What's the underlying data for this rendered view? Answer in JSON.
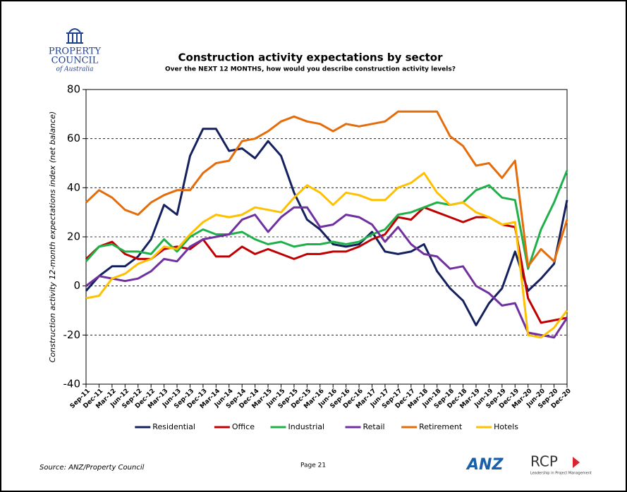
{
  "logo": {
    "name_line1": "PROPERTY",
    "name_line2": "COUNCIL",
    "name_line3": "of Australia"
  },
  "footer": {
    "source": "Source: ANZ/Property Council",
    "page": "Page 21",
    "brand1": "ANZ",
    "brand2": "RCP",
    "brand2_tagline": "Leadership in Project Management"
  },
  "chart_data": {
    "type": "line",
    "title": "Construction activity expectations by sector",
    "subtitle": "Over the NEXT 12 MONTHS, how would you describe construction activity levels?",
    "y_label": "Construction activity 12-month expectations index (net balance)",
    "categories": [
      "Sep-11",
      "Dec-11",
      "Mar-12",
      "Jun-12",
      "Sep-12",
      "Dec-12",
      "Mar-13",
      "Jun-13",
      "Sep-13",
      "Dec-13",
      "Mar-14",
      "Jun-14",
      "Sep-14",
      "Dec-14",
      "Mar-15",
      "Jun-15",
      "Sep-15",
      "Dec-15",
      "Mar-16",
      "Jun-16",
      "Sep-16",
      "Dec-16",
      "Mar-17",
      "Jun-17",
      "Sep-17",
      "Dec-17",
      "Mar-18",
      "Jun-18",
      "Sep-18",
      "Dec-18",
      "Mar-19",
      "Jun-19",
      "Sep-19",
      "Dec-19",
      "Mar-20",
      "Jun-20",
      "Sep-20",
      "Dec-20"
    ],
    "series": [
      {
        "name": "Residential",
        "color": "#14215e",
        "values": [
          -2,
          4,
          8,
          8,
          12,
          19,
          33,
          29,
          53,
          64,
          64,
          55,
          56,
          52,
          59,
          53,
          38,
          27,
          23,
          17,
          16,
          17,
          22,
          14,
          13,
          14,
          17,
          6,
          -1,
          -6,
          -16,
          -7,
          -1,
          14,
          -2,
          3,
          9,
          35
        ]
      },
      {
        "name": "Office",
        "color": "#c00000",
        "values": [
          11,
          16,
          18,
          13,
          11,
          11,
          15,
          16,
          15,
          19,
          12,
          12,
          16,
          13,
          15,
          13,
          11,
          13,
          13,
          14,
          14,
          16,
          19,
          21,
          28,
          27,
          32,
          30,
          28,
          26,
          28,
          28,
          25,
          24,
          -5,
          -15,
          -14,
          -13
        ]
      },
      {
        "name": "Industrial",
        "color": "#1fb04a",
        "values": [
          10,
          16,
          17,
          14,
          14,
          13,
          19,
          14,
          20,
          23,
          21,
          21,
          22,
          19,
          17,
          18,
          16,
          17,
          17,
          18,
          17,
          18,
          21,
          23,
          29,
          30,
          32,
          34,
          33,
          34,
          39,
          41,
          36,
          35,
          7,
          23,
          34,
          47
        ]
      },
      {
        "name": "Retail",
        "color": "#7030a0",
        "values": [
          0,
          4,
          3,
          2,
          3,
          6,
          11,
          10,
          16,
          19,
          20,
          21,
          27,
          29,
          22,
          28,
          32,
          32,
          24,
          25,
          29,
          28,
          25,
          18,
          24,
          17,
          13,
          12,
          7,
          8,
          0,
          -3,
          -8,
          -7,
          -19,
          -20,
          -21,
          -13
        ]
      },
      {
        "name": "Retirement",
        "color": "#e46c0a",
        "values": [
          34,
          39,
          36,
          31,
          29,
          34,
          37,
          39,
          39,
          46,
          50,
          51,
          59,
          60,
          63,
          67,
          69,
          67,
          66,
          63,
          66,
          65,
          66,
          67,
          71,
          71,
          71,
          71,
          61,
          57,
          49,
          50,
          44,
          51,
          8,
          15,
          10,
          27
        ]
      },
      {
        "name": "Hotels",
        "color": "#ffc000",
        "values": [
          -5,
          -4,
          3,
          5,
          9,
          11,
          16,
          15,
          21,
          26,
          29,
          28,
          29,
          32,
          31,
          30,
          36,
          41,
          38,
          33,
          38,
          37,
          35,
          35,
          40,
          42,
          46,
          38,
          33,
          34,
          30,
          28,
          25,
          26,
          -20,
          -21,
          -17,
          -10
        ]
      }
    ],
    "ylim": [
      -40,
      80
    ],
    "yticks": [
      -40,
      -20,
      0,
      20,
      40,
      60,
      80
    ],
    "grid": true,
    "legend": "bottom"
  }
}
